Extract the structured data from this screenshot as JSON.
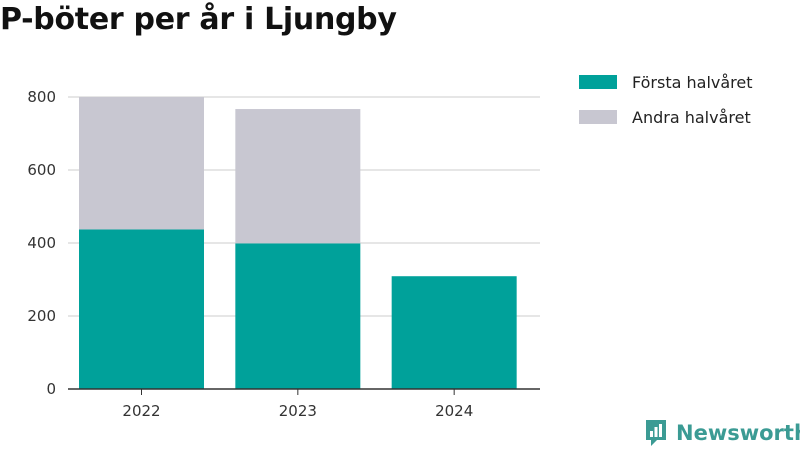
{
  "chart_data": {
    "type": "bar",
    "stacked": true,
    "title": "P-böter per år i Ljungby",
    "categories": [
      "2022",
      "2023",
      "2024"
    ],
    "series": [
      {
        "name": "Första halvåret",
        "color": "#00a19a",
        "values": [
          437,
          399,
          309
        ]
      },
      {
        "name": "Andra halvåret",
        "color": "#c8c7d1",
        "values": [
          363,
          368,
          0
        ]
      }
    ],
    "ylim": [
      0,
      800
    ],
    "yticks": [
      0,
      200,
      400,
      600,
      800
    ],
    "grid": true,
    "legend_position": "top-right"
  },
  "brand": {
    "name": "Newsworthy",
    "color": "#3b9b94",
    "icon": "newsworthy-logo-icon"
  }
}
